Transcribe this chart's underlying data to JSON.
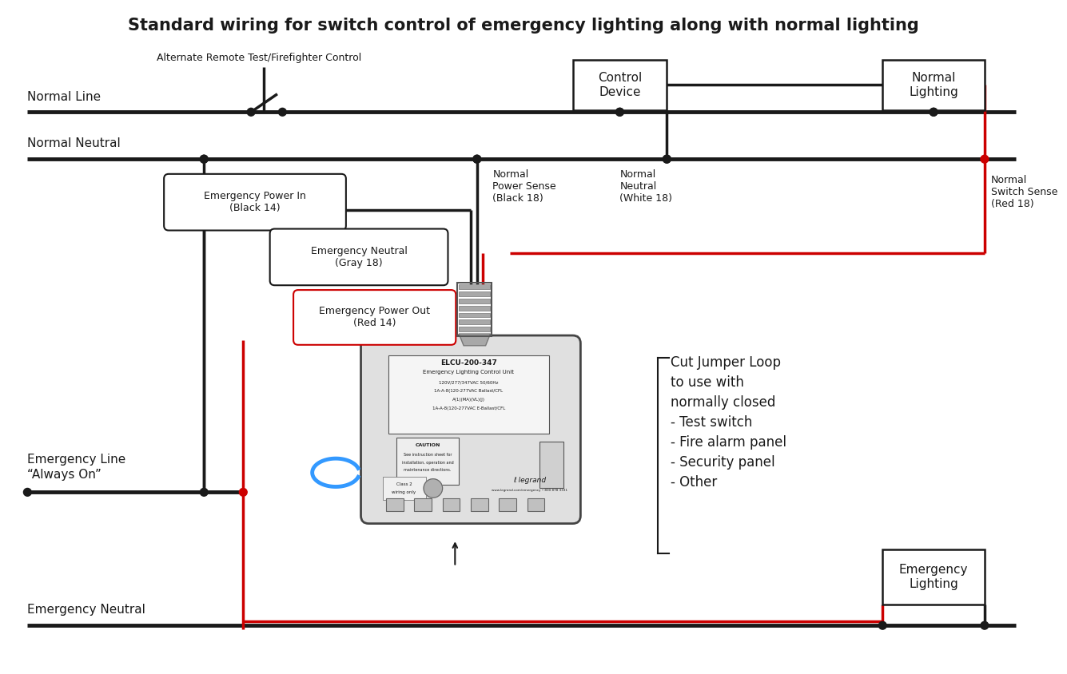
{
  "title": "Standard wiring for switch control of emergency lighting along with normal lighting",
  "bg_color": "#ffffff",
  "title_fontsize": 15,
  "wire_color_black": "#1a1a1a",
  "wire_color_red": "#cc0000",
  "wire_color_blue": "#3399ff",
  "text_color": "#1a1a1a",
  "labels": {
    "normal_line": "Normal Line",
    "normal_neutral": "Normal Neutral",
    "emergency_line": "Emergency Line\n“Always On”",
    "emergency_neutral_bottom": "Emergency Neutral",
    "alt_remote": "Alternate Remote Test/Firefighter Control",
    "control_device": "Control\nDevice",
    "normal_lighting": "Normal\nLighting",
    "emergency_lighting": "Emergency\nLighting",
    "emerg_power_in": "Emergency Power In\n(Black 14)",
    "emerg_neutral_gray": "Emergency Neutral\n(Gray 18)",
    "emerg_power_out": "Emergency Power Out\n(Red 14)",
    "normal_power_sense": "Normal\nPower Sense\n(Black 18)",
    "normal_neutral_white": "Normal\nNeutral\n(White 18)",
    "normal_switch_sense": "Normal\nSwitch Sense\n(Red 18)",
    "cut_jumper": "Cut Jumper Loop\nto use with\nnormally closed\n- Test switch\n- Fire alarm panel\n- Security panel\n- Other"
  }
}
